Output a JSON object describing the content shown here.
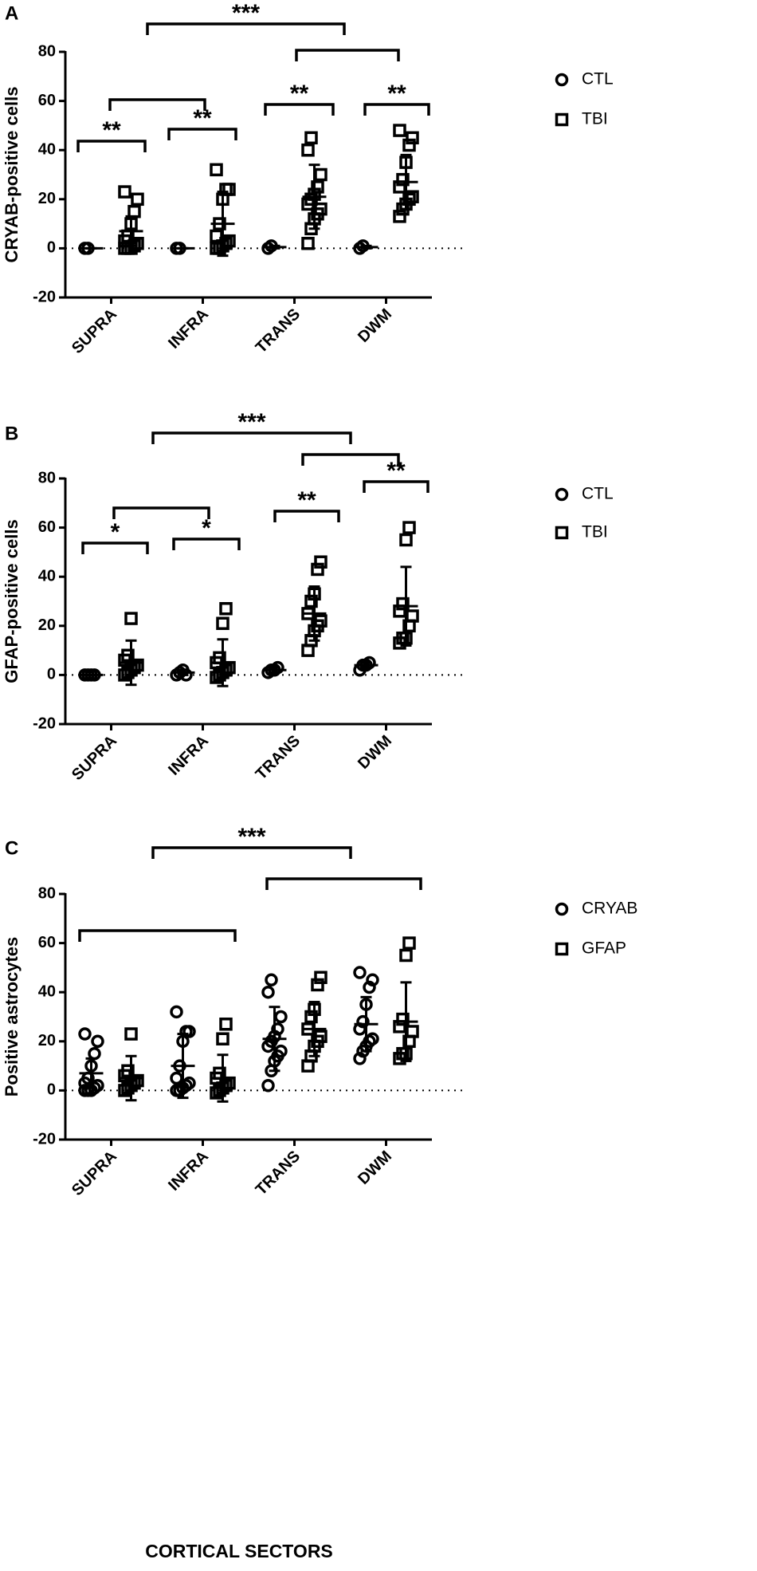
{
  "chart_data": [
    {
      "type": "dot",
      "panel": "A",
      "ylabel": "CRYAB-positive cells",
      "categories": [
        "SUPRA",
        "INFRA",
        "TRANS",
        "DWM"
      ],
      "ylim": [
        -20,
        80
      ],
      "yticks": [
        -20,
        0,
        20,
        40,
        60,
        80
      ],
      "annotations": [
        "***",
        "**",
        "**",
        "**",
        "**"
      ],
      "series": [
        {
          "name": "CTL",
          "marker": "circle",
          "color": "#000000",
          "values": [
            [
              0,
              0
            ],
            [
              0,
              0
            ],
            [
              0,
              1
            ],
            [
              0,
              1
            ]
          ],
          "mean": [
            0,
            0,
            0.5,
            0.5
          ],
          "sd": [
            0,
            0,
            0.5,
            0.5
          ]
        },
        {
          "name": "TBI",
          "marker": "square",
          "color": "#000000",
          "values": [
            [
              0,
              0,
              0,
              1,
              2,
              3,
              5,
              10,
              15,
              20,
              23
            ],
            [
              0,
              0,
              1,
              2,
              3,
              5,
              10,
              20,
              24,
              24,
              32
            ],
            [
              2,
              8,
              12,
              14,
              16,
              18,
              20,
              22,
              25,
              30,
              40,
              45
            ],
            [
              13,
              16,
              18,
              20,
              21,
              25,
              28,
              35,
              42,
              45,
              48
            ]
          ],
          "mean": [
            7,
            10,
            21,
            27
          ],
          "sd": [
            6,
            13,
            13,
            11
          ]
        }
      ]
    },
    {
      "type": "dot",
      "panel": "B",
      "ylabel": "GFAP-positive cells",
      "categories": [
        "SUPRA",
        "INFRA",
        "TRANS",
        "DWM"
      ],
      "ylim": [
        -20,
        80
      ],
      "yticks": [
        -20,
        0,
        20,
        40,
        60,
        80
      ],
      "annotations": [
        "***",
        "*",
        "*",
        "**",
        "**"
      ],
      "series": [
        {
          "name": "CTL",
          "marker": "circle",
          "color": "#000000",
          "values": [
            [
              0,
              0,
              0,
              0
            ],
            [
              0,
              1,
              2,
              0
            ],
            [
              1,
              2,
              2,
              3
            ],
            [
              2,
              4,
              4,
              5
            ]
          ],
          "mean": [
            0,
            1,
            2,
            4
          ],
          "sd": [
            0,
            1,
            1,
            1
          ]
        },
        {
          "name": "TBI",
          "marker": "square",
          "color": "#000000",
          "values": [
            [
              0,
              1,
              2,
              3,
              4,
              6,
              8,
              23
            ],
            [
              -1,
              0,
              1,
              2,
              3,
              5,
              7,
              21,
              27
            ],
            [
              10,
              14,
              18,
              20,
              22,
              25,
              30,
              33,
              43,
              46
            ],
            [
              13,
              15,
              15,
              20,
              24,
              26,
              29,
              55,
              60
            ]
          ],
          "mean": [
            5,
            5,
            25,
            28
          ],
          "sd": [
            9,
            9.5,
            11,
            16
          ]
        }
      ]
    },
    {
      "type": "dot",
      "panel": "C",
      "ylabel": "Positive astrocytes",
      "xlabel": "CORTICAL SECTORS",
      "categories": [
        "SUPRA",
        "INFRA",
        "TRANS",
        "DWM"
      ],
      "ylim": [
        -20,
        80
      ],
      "yticks": [
        -20,
        0,
        20,
        40,
        60,
        80
      ],
      "annotations": [
        "***"
      ],
      "series": [
        {
          "name": "CRYAB",
          "marker": "circle",
          "color": "#000000",
          "values": [
            [
              0,
              0,
              0,
              1,
              2,
              3,
              5,
              10,
              15,
              20,
              23
            ],
            [
              0,
              0,
              1,
              2,
              3,
              5,
              10,
              20,
              24,
              24,
              32
            ],
            [
              2,
              8,
              12,
              14,
              16,
              18,
              20,
              22,
              25,
              30,
              40,
              45
            ],
            [
              13,
              16,
              18,
              20,
              21,
              25,
              28,
              35,
              42,
              45,
              48
            ]
          ],
          "mean": [
            7,
            10,
            21,
            27
          ],
          "sd": [
            6,
            13,
            13,
            11
          ]
        },
        {
          "name": "GFAP",
          "marker": "square",
          "color": "#000000",
          "values": [
            [
              0,
              1,
              2,
              3,
              4,
              6,
              8,
              23
            ],
            [
              -1,
              0,
              1,
              2,
              3,
              5,
              7,
              21,
              27
            ],
            [
              10,
              14,
              18,
              20,
              22,
              25,
              30,
              33,
              43,
              46
            ],
            [
              13,
              15,
              15,
              20,
              24,
              26,
              29,
              55,
              60
            ]
          ],
          "mean": [
            5,
            5,
            25,
            28
          ],
          "sd": [
            9,
            9.5,
            11,
            16
          ]
        }
      ]
    }
  ]
}
